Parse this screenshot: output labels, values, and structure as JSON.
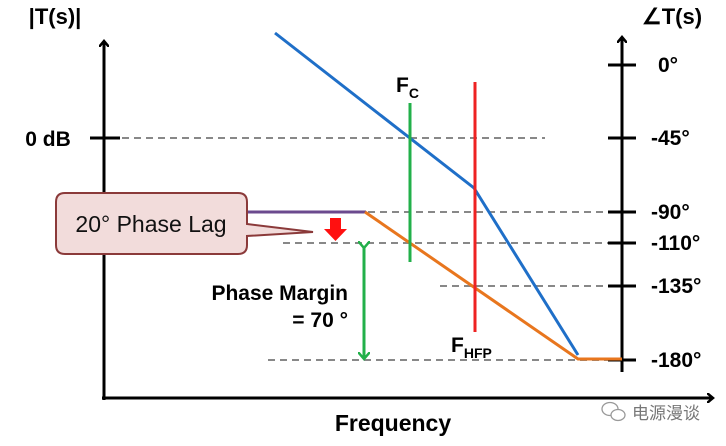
{
  "left_axis_label": "|T(s)|",
  "right_axis_label": "∠T(s)",
  "x_axis_label": "Frequency",
  "zero_db_label": "0 dB",
  "phase_ticks": [
    "0°",
    "-45°",
    "-90°",
    "-110°",
    "-135°",
    "-180°"
  ],
  "fc_label": {
    "main": "F",
    "sub": "C"
  },
  "fhfp_label": {
    "main": "F",
    "sub": "HFP"
  },
  "callout_text": "20° Phase Lag",
  "phase_margin_line1": "Phase Margin",
  "phase_margin_line2": "= 70 °",
  "watermark": "电源漫谈",
  "colors": {
    "magnitude": "#1f6fc8",
    "phase": "#e8761e",
    "fc": "#22b04a",
    "fhfp": "#ee2222",
    "lag": "#6b4a8e",
    "callout_fill": "#f2dcdb",
    "callout_stroke": "#8b3a3a"
  }
}
